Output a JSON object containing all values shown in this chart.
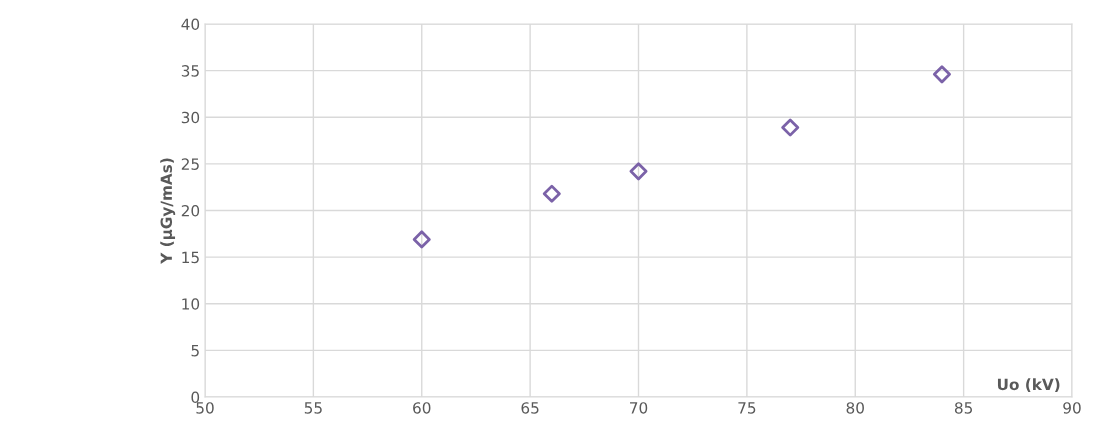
{
  "chart_data": {
    "type": "scatter",
    "xlabel": "Uo (kV)",
    "ylabel": "Y (µGy/mAs)",
    "x": [
      60,
      66,
      70,
      77,
      84
    ],
    "series": [
      {
        "color": "#7b62a8",
        "values": [
          16.9,
          21.8,
          24.2,
          28.9,
          34.6
        ]
      }
    ],
    "xlim": [
      50,
      90
    ],
    "xticks": [
      50,
      55,
      60,
      65,
      70,
      75,
      80,
      85,
      90
    ],
    "ylim": [
      0,
      40
    ],
    "yticks": [
      0,
      5,
      10,
      15,
      20,
      25,
      30,
      35,
      40
    ],
    "grid": true,
    "marker": "diamond"
  }
}
